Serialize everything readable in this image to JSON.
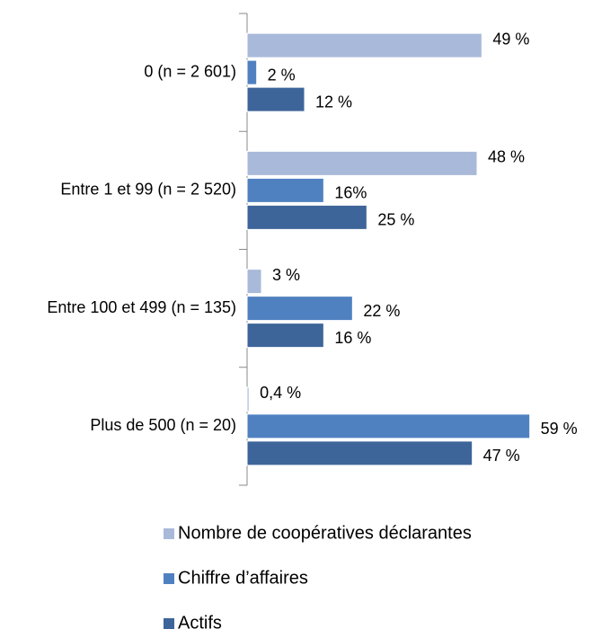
{
  "chart_data": {
    "type": "barh",
    "categories": [
      "0 (n = 2 601)",
      "Entre 1 et 99 (n = 2 520)",
      "Entre 100 et 499 (n = 135)",
      "Plus de 500 (n = 20)"
    ],
    "series": [
      {
        "name": "Nombre de coopératives déclarantes",
        "color": "#a9b9d9",
        "values": [
          49,
          48,
          3,
          0.4
        ],
        "value_labels": [
          "49 %",
          "48 %",
          "3 %",
          "0,4 %"
        ]
      },
      {
        "name": "Chiffre d’affaires",
        "color": "#4f81c1",
        "values": [
          2,
          16,
          22,
          59
        ],
        "value_labels": [
          "2 %",
          "16%",
          "22 %",
          "59 %"
        ]
      },
      {
        "name": "Actifs",
        "color": "#3e659a",
        "values": [
          12,
          25,
          16,
          47
        ],
        "value_labels": [
          "12 %",
          "25 %",
          "16 %",
          "47 %"
        ]
      }
    ],
    "xlim": [
      0,
      60
    ],
    "legend": "bottom"
  }
}
